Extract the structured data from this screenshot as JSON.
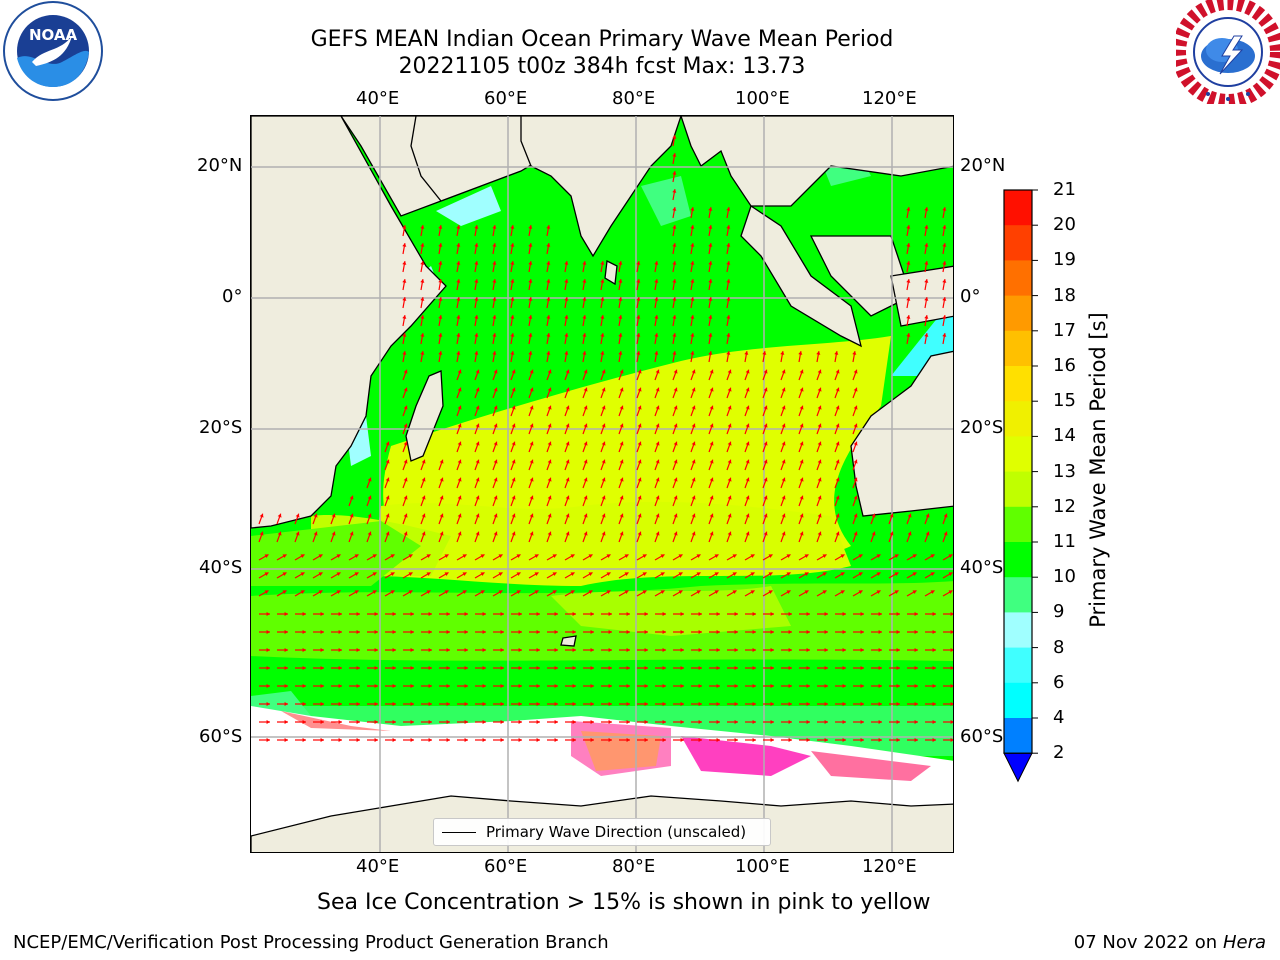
{
  "header": {
    "title_line1": "GEFS MEAN Indian Ocean Primary Wave Mean Period",
    "title_line2": "20221105 t00z 384h fcst   Max: 13.73"
  },
  "logos": {
    "left": {
      "name": "NOAA",
      "text": "NOAA",
      "ring_text": "NATIONAL OCEANIC AND ATMOSPHERIC ADMINISTRATION · U.S. DEPARTMENT OF COMMERCE"
    },
    "right": {
      "name": "National Weather Service",
      "ring_text": "NATIONAL WEATHER SERVICE"
    }
  },
  "map": {
    "lon_ticks": [
      "40°E",
      "60°E",
      "80°E",
      "100°E",
      "120°E"
    ],
    "lat_ticks": [
      "20°N",
      "0°",
      "20°S",
      "40°S",
      "60°S"
    ],
    "land_color": "#efedde",
    "sea_ice_color": "#ffffff",
    "arrow_color": "#ff0000",
    "legend_label": "Primary Wave Direction (unscaled)"
  },
  "colorbar": {
    "label": "Primary Wave Mean Period [s]",
    "tick_labels": [
      "2",
      "4",
      "6",
      "8",
      "9",
      "10",
      "11",
      "12",
      "13",
      "14",
      "15",
      "16",
      "17",
      "18",
      "19",
      "20",
      "21"
    ],
    "bins": [
      {
        "from": 2,
        "to": 4,
        "color": "#0080ff"
      },
      {
        "from": 4,
        "to": 6,
        "color": "#00ffff"
      },
      {
        "from": 6,
        "to": 8,
        "color": "#40ffff"
      },
      {
        "from": 8,
        "to": 9,
        "color": "#a0ffff"
      },
      {
        "from": 9,
        "to": 10,
        "color": "#40ff80"
      },
      {
        "from": 10,
        "to": 11,
        "color": "#00ff00"
      },
      {
        "from": 11,
        "to": 12,
        "color": "#60ff00"
      },
      {
        "from": 12,
        "to": 13,
        "color": "#c0ff00"
      },
      {
        "from": 13,
        "to": 14,
        "color": "#e0ff00"
      },
      {
        "from": 14,
        "to": 15,
        "color": "#f0f000"
      },
      {
        "from": 15,
        "to": 16,
        "color": "#ffe000"
      },
      {
        "from": 16,
        "to": 17,
        "color": "#ffc000"
      },
      {
        "from": 17,
        "to": 18,
        "color": "#ff9a00"
      },
      {
        "from": 18,
        "to": 19,
        "color": "#ff7000"
      },
      {
        "from": 19,
        "to": 20,
        "color": "#ff4000"
      },
      {
        "from": 20,
        "to": 21,
        "color": "#ff1000"
      }
    ],
    "extend_color": "#0000ff"
  },
  "caption": "Sea Ice Concentration > 15% is shown in pink to yellow",
  "footer": {
    "left": "NCEP/EMC/Verification Post Processing Product Generation Branch",
    "right_date": "07 Nov 2022 on",
    "right_host": "Hera"
  }
}
